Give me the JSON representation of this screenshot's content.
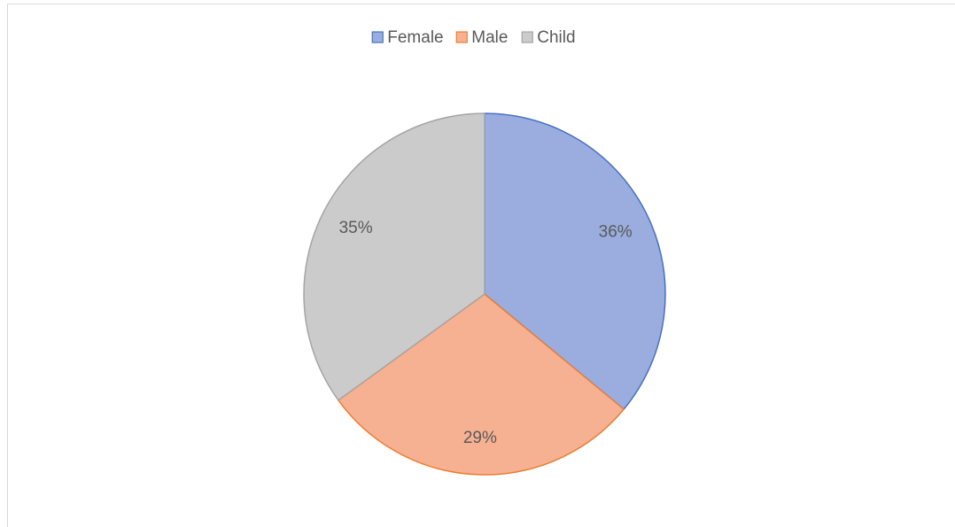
{
  "chart_data": {
    "type": "pie",
    "categories": [
      "Female",
      "Male",
      "Child"
    ],
    "values": [
      36,
      29,
      35
    ],
    "value_labels": [
      "36%",
      "29%",
      "35%"
    ],
    "colors": [
      "#9badde",
      "#f6b192",
      "#cbcbcb"
    ],
    "edge_colors": [
      "#4472c4",
      "#ed7d31",
      "#a5a5a5"
    ],
    "legend": "top"
  }
}
